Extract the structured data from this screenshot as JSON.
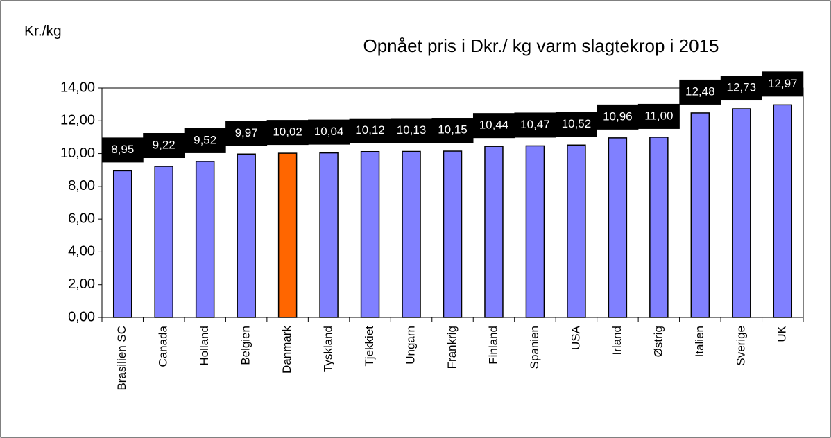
{
  "chart_data": {
    "type": "bar",
    "title": "Opnået pris i Dkr./ kg varm slagtekrop  i 2015",
    "y_label": "Kr./kg",
    "categories": [
      "Brasilien SC",
      "Canada",
      "Holland",
      "Belgien",
      "Danmark",
      "Tyskland",
      "Tjekkiet",
      "Ungarn",
      "Frankrig",
      "Finland",
      "Spanien",
      "USA",
      "Irland",
      "Østrig",
      "Italien",
      "Sverige",
      "UK"
    ],
    "values": [
      8.95,
      9.22,
      9.52,
      9.97,
      10.02,
      10.04,
      10.12,
      10.13,
      10.15,
      10.44,
      10.47,
      10.52,
      10.96,
      11.0,
      12.48,
      12.73,
      12.97
    ],
    "value_labels": [
      "8,95",
      "9,22",
      "9,52",
      "9,97",
      "10,02",
      "10,04",
      "10,12",
      "10,13",
      "10,15",
      "10,44",
      "10,47",
      "10,52",
      "10,96",
      "11,00",
      "12,48",
      "12,73",
      "12,97"
    ],
    "color": "#8080ff",
    "colors": [
      "#8080ff",
      "#8080ff",
      "#8080ff",
      "#8080ff",
      "#ff6600",
      "#8080ff",
      "#8080ff",
      "#8080ff",
      "#8080ff",
      "#8080ff",
      "#8080ff",
      "#8080ff",
      "#8080ff",
      "#8080ff",
      "#8080ff",
      "#8080ff",
      "#8080ff"
    ],
    "ylim": [
      0,
      14
    ],
    "yticks": [
      {
        "value": 0,
        "label": "0,00"
      },
      {
        "value": 2,
        "label": "2,00"
      },
      {
        "value": 4,
        "label": "4,00"
      },
      {
        "value": 6,
        "label": "6,00"
      },
      {
        "value": 8,
        "label": "8,00"
      },
      {
        "value": 10,
        "label": "10,00"
      },
      {
        "value": 12,
        "label": "12,00"
      },
      {
        "value": 14,
        "label": "14,00"
      }
    ],
    "grid": false
  }
}
